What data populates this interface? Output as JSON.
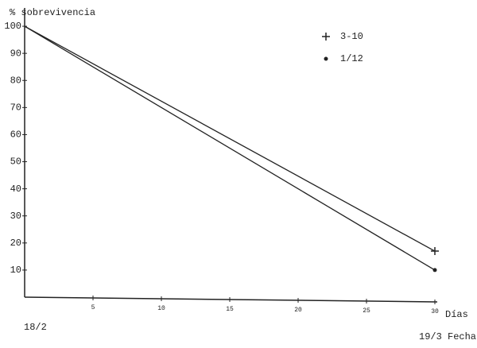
{
  "chart_data": {
    "type": "line",
    "y_label": "% sobrevivencia",
    "x_label": "Días",
    "annotations": [
      "18/2",
      "19/3 Fecha"
    ],
    "x": [
      0,
      30
    ],
    "series": [
      {
        "name": "3-10",
        "color": "#222222",
        "marker": "plus",
        "values": [
          100,
          17
        ]
      },
      {
        "name": "1/12",
        "color": "#222222",
        "marker": "dot",
        "values": [
          100,
          10
        ]
      }
    ],
    "xlim": [
      0,
      30
    ],
    "ylim": [
      0,
      105
    ],
    "xticks": [
      5,
      10,
      15,
      20,
      25,
      30
    ],
    "yticks": [
      10,
      20,
      30,
      40,
      50,
      60,
      70,
      80,
      90,
      100
    ],
    "grid": false
  }
}
